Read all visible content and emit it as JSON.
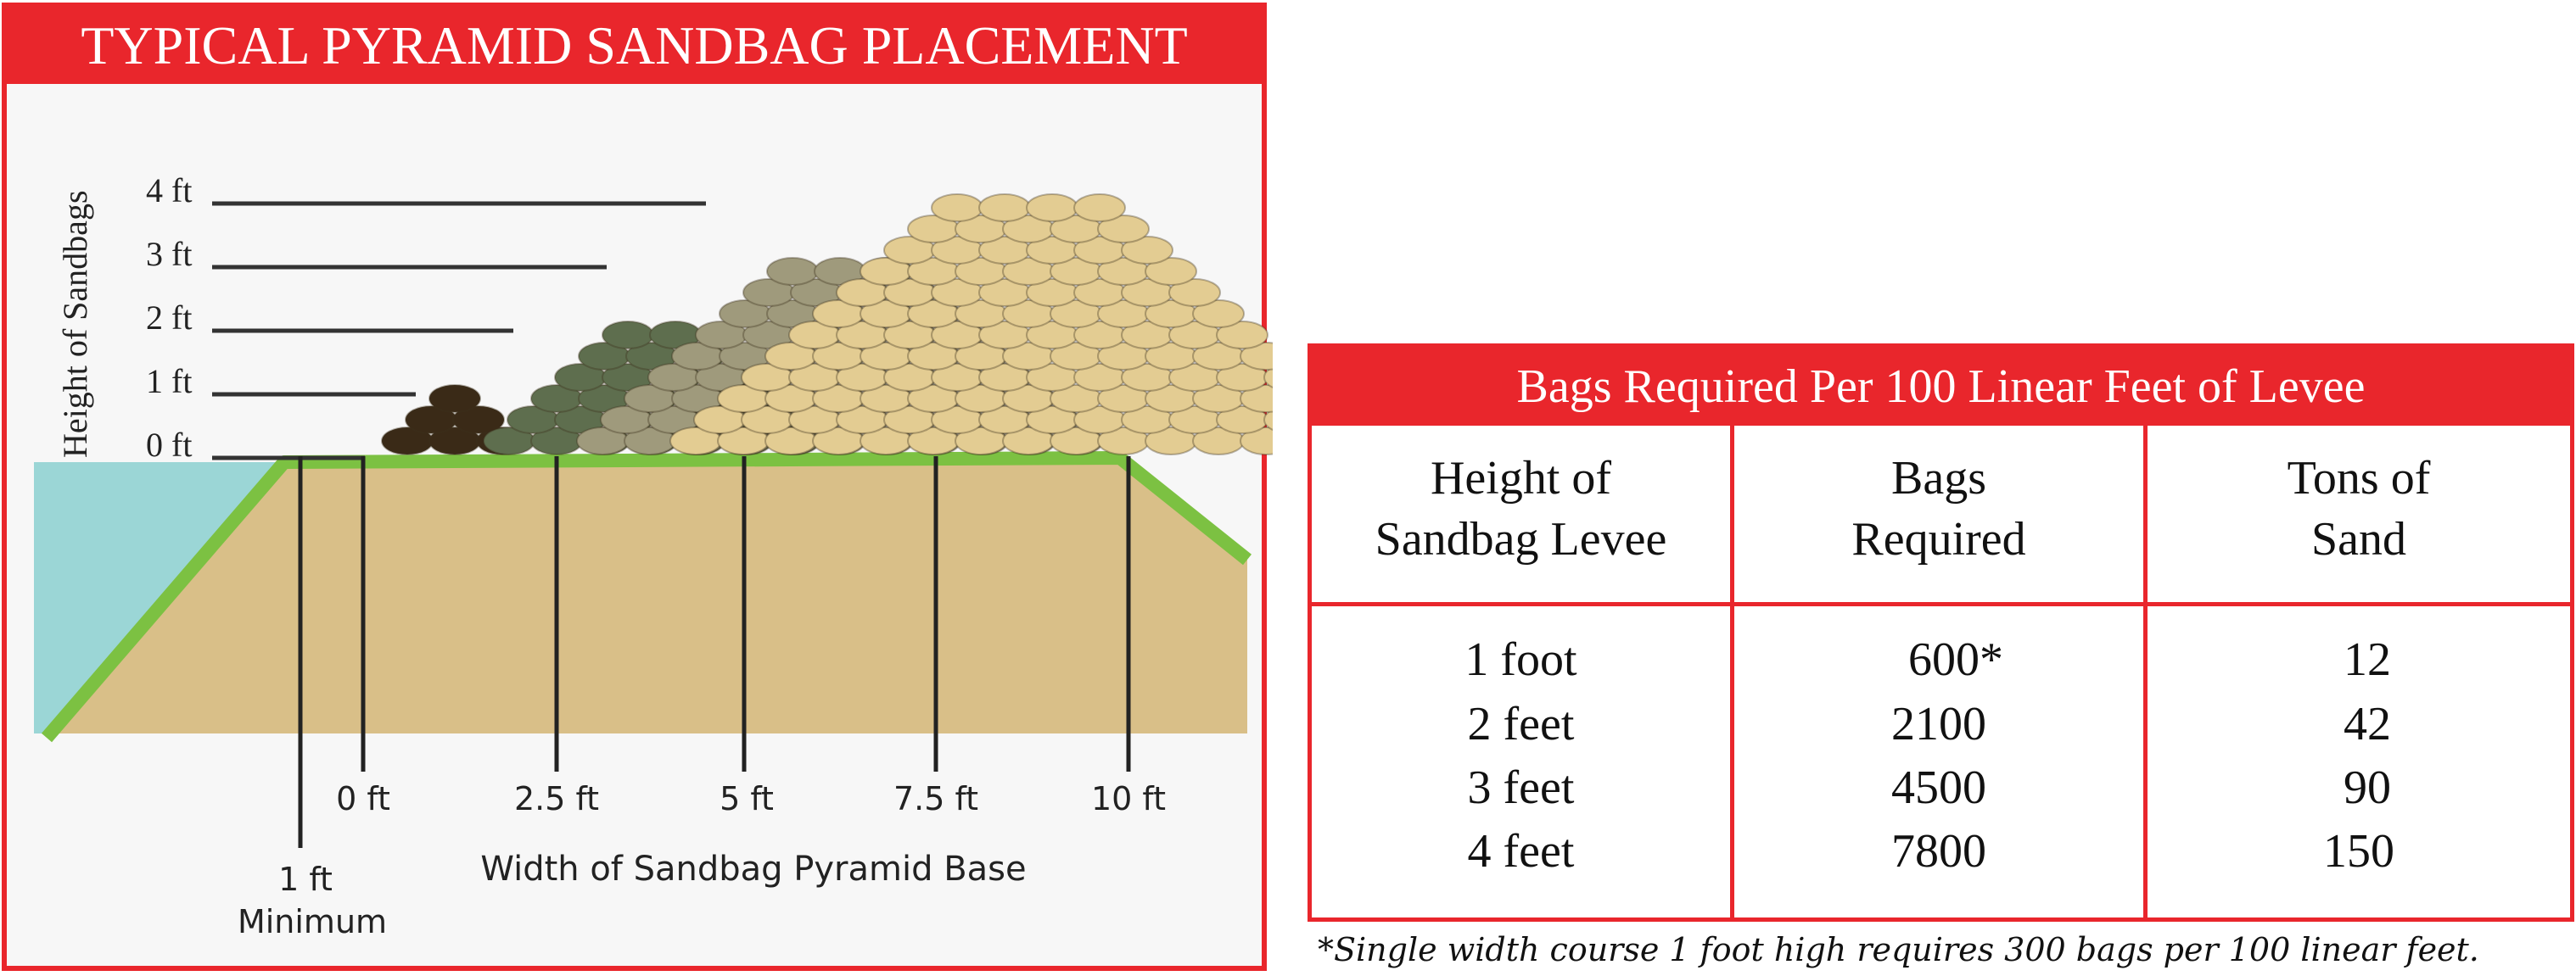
{
  "diagram": {
    "title": "TYPICAL PYRAMID SANDBAG PLACEMENT",
    "y_axis_label": "Height of Sandbags",
    "height_levels": [
      "4 ft",
      "3 ft",
      "2 ft",
      "1 ft",
      "0 ft"
    ],
    "x_axis_label": "Width of Sandbag Pyramid Base",
    "width_marks": [
      "0 ft",
      "2.5 ft",
      "5 ft",
      "7.5 ft",
      "10 ft"
    ],
    "min_label_line1": "1 ft",
    "min_label_line2": "Minimum",
    "colors": {
      "header": "#e9262c",
      "water": "#9bd6d6",
      "soil": "#d9bf88",
      "grass": "#7cc142",
      "bag_1ft": "#3a2a17",
      "bag_2ft": "#5e6e4e",
      "bag_3ft": "#9f9a7c",
      "bag_4ft": "#e3cc92"
    }
  },
  "table": {
    "title": "Bags Required Per 100 Linear Feet of Levee",
    "columns": [
      {
        "line1": "Height of",
        "line2": "Sandbag Levee"
      },
      {
        "line1": "Bags",
        "line2": "Required"
      },
      {
        "line1": "Tons of",
        "line2": "Sand"
      }
    ],
    "rows": [
      {
        "height": "1 foot",
        "bags": "600*",
        "tons": "12"
      },
      {
        "height": "2 feet",
        "bags": "2100",
        "tons": "42"
      },
      {
        "height": "3 feet",
        "bags": "4500",
        "tons": "90"
      },
      {
        "height": "4 feet",
        "bags": "7800",
        "tons": "150"
      }
    ],
    "footnote": "*Single width course 1 foot high requires 300 bags per 100 linear feet."
  }
}
